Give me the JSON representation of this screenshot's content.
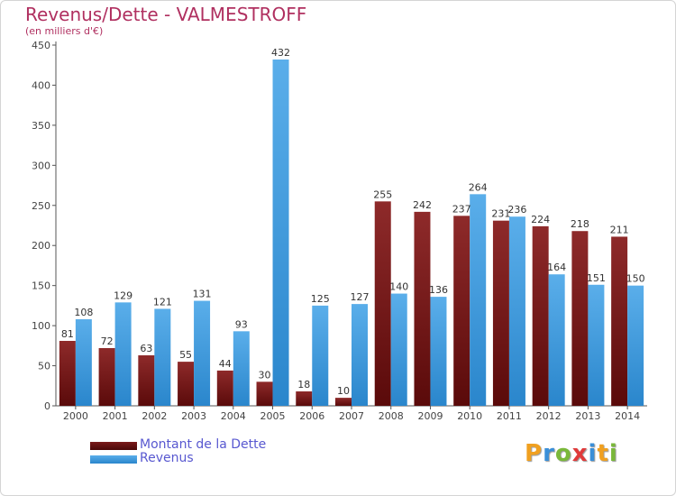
{
  "chart_data": {
    "type": "bar",
    "title": "Revenus/Dette - VALMESTROFF",
    "subtitle": "(en milliers d'€)",
    "categories": [
      "2000",
      "2001",
      "2002",
      "2003",
      "2004",
      "2005",
      "2006",
      "2007",
      "2008",
      "2009",
      "2010",
      "2011",
      "2012",
      "2013",
      "2014"
    ],
    "series": [
      {
        "name": "Montant de la Dette",
        "color": "#7a1a1a",
        "values": [
          81,
          72,
          63,
          55,
          44,
          30,
          18,
          10,
          255,
          242,
          237,
          231,
          224,
          218,
          211
        ]
      },
      {
        "name": "Revenus",
        "color": "#3f9fe0",
        "values": [
          108,
          129,
          121,
          131,
          93,
          432,
          125,
          127,
          140,
          136,
          264,
          236,
          164,
          151,
          150
        ]
      }
    ],
    "ylim": [
      0,
      450
    ],
    "yticks": [
      0,
      50,
      100,
      150,
      200,
      250,
      300,
      350,
      400,
      450
    ],
    "grid": false,
    "legend_position": "bottom-left"
  },
  "legend": {
    "debt_label": "Montant de la Dette",
    "revenue_label": "Revenus"
  },
  "logo": {
    "letters": [
      "P",
      "r",
      "o",
      "x",
      "i",
      "t",
      "i"
    ],
    "colors": [
      "#f0a020",
      "#3a8fd8",
      "#7ab83a",
      "#e03a3a",
      "#3a8fd8",
      "#f0a020",
      "#7ab83a"
    ]
  }
}
